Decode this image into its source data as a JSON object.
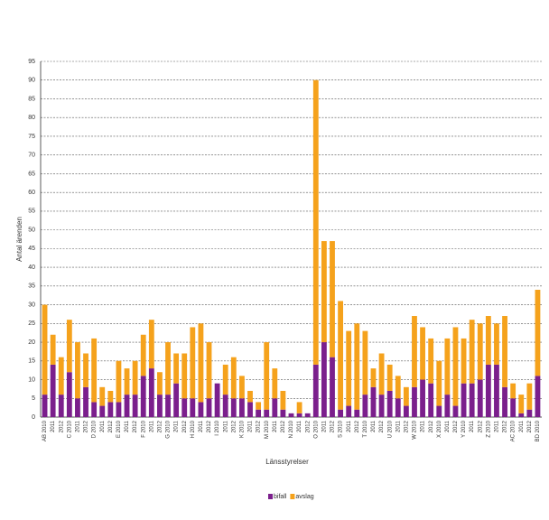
{
  "chart_data": {
    "type": "bar",
    "stacked": true,
    "y_label": "Antal ärenden",
    "x_label": "Länsstyrelser",
    "categories": [
      "AB 2010",
      "2011",
      "2012",
      "C 2010",
      "2011",
      "2012",
      "D 2010",
      "2011",
      "2012",
      "E 2010",
      "2011",
      "2012",
      "F 2010",
      "2011",
      "2012",
      "G 2010",
      "2011",
      "2012",
      "H 2010",
      "2011",
      "2012",
      "I 2010",
      "2011",
      "2012",
      "K 2010",
      "2011",
      "2012",
      "M 2010",
      "2011",
      "2012",
      "N 2010",
      "2011",
      "2012",
      "O 2010",
      "2011",
      "2012",
      "S 2010",
      "2011",
      "2012",
      "T 2010",
      "2011",
      "2012",
      "U 2010",
      "2011",
      "2012",
      "W 2010",
      "2011",
      "2012",
      "X 2010",
      "2011",
      "2012",
      "Y 2010",
      "2011",
      "2012",
      "Z 2010",
      "2011",
      "2012",
      "AC 2010",
      "2011",
      "2012",
      "BD 2010"
    ],
    "series": [
      {
        "name": "bifall",
        "color": "#7b1f8c",
        "values": [
          6,
          14,
          6,
          12,
          5,
          8,
          4,
          3,
          4,
          4,
          6,
          6,
          11,
          13,
          6,
          6,
          9,
          5,
          5,
          4,
          5,
          9,
          6,
          5,
          5,
          4,
          2,
          2,
          5,
          2,
          1,
          1,
          1,
          14,
          20,
          16,
          2,
          3,
          2,
          6,
          8,
          6,
          7,
          5,
          3,
          8,
          10,
          9,
          3,
          6,
          3,
          9,
          9,
          10,
          14,
          14,
          8,
          5,
          1,
          2,
          11
        ]
      },
      {
        "name": "avslag",
        "color": "#f5a21c",
        "values": [
          24,
          8,
          10,
          14,
          15,
          9,
          17,
          5,
          3,
          11,
          7,
          9,
          11,
          13,
          6,
          14,
          8,
          12,
          19,
          21,
          15,
          0,
          8,
          11,
          6,
          3,
          2,
          18,
          8,
          5,
          0,
          3,
          0,
          76,
          27,
          31,
          29,
          20,
          23,
          17,
          5,
          11,
          7,
          6,
          5,
          19,
          14,
          12,
          12,
          15,
          21,
          12,
          17,
          15,
          13,
          11,
          19,
          4,
          5,
          7,
          23
        ]
      }
    ],
    "ylim": [
      0,
      95
    ],
    "yticks": [
      0,
      5,
      10,
      15,
      20,
      25,
      30,
      35,
      40,
      45,
      50,
      55,
      60,
      65,
      70,
      75,
      80,
      85,
      90,
      95
    ],
    "grid": true,
    "legend": "bottom"
  }
}
